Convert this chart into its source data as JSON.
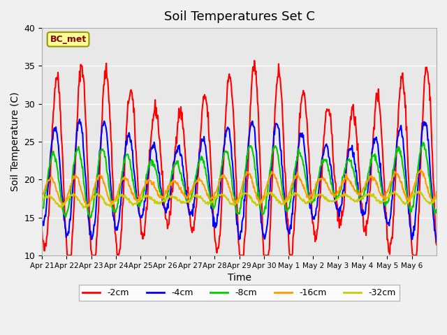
{
  "title": "Soil Temperatures Set C",
  "xlabel": "Time",
  "ylabel": "Soil Temperature (C)",
  "ylim": [
    10,
    40
  ],
  "annotation": "BC_met",
  "background_color": "#f0f0f0",
  "plot_bg_color": "#e8e8e8",
  "series_colors": [
    "#ff0000",
    "#0000ff",
    "#00cc00",
    "#ff9900",
    "#cccc00"
  ],
  "series_labels": [
    "-2cm",
    "-4cm",
    "-8cm",
    "-16cm",
    "-32cm"
  ],
  "x_tick_labels": [
    "Apr 21",
    "Apr 22",
    "Apr 23",
    "Apr 24",
    "Apr 25",
    "Apr 26",
    "Apr 27",
    "Apr 28",
    "Apr 29",
    "Apr 30",
    "May 1",
    "May 2",
    "May 3",
    "May 4",
    "May 5",
    "May 6"
  ],
  "n_days": 16,
  "pts_per_day": 48
}
